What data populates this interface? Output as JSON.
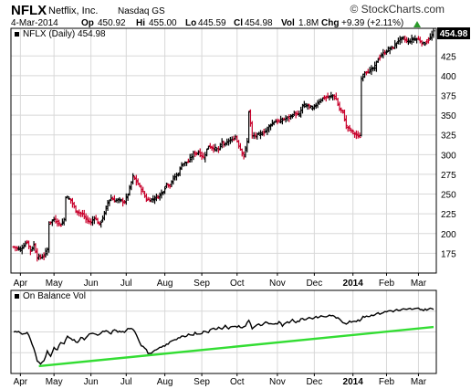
{
  "header": {
    "symbol": "NFLX",
    "company": "Netflix, Inc.",
    "exchange": "Nasdaq GS",
    "copyright": "© StockCharts.com",
    "date": "4-Mar-2014",
    "op_label": "Op",
    "op_value": "450.92",
    "hi_label": "Hi",
    "hi_value": "455.00",
    "lo_label": "Lo",
    "lo_value": "445.59",
    "cl_label": "Cl",
    "cl_value": "454.98",
    "vol_label": "Vol",
    "vol_value": "1.8M",
    "chg_label": "Chg",
    "chg_value": "+9.39 (+2.11%)"
  },
  "colors": {
    "up": "#000000",
    "down": "#c8002b",
    "obv": "#000000",
    "trend": "#33dd33",
    "grid": "#d8d8d8",
    "last_price_box": "#000000"
  },
  "chart_data": [
    {
      "type": "ohlc",
      "legend": "NFLX (Daily) 454.98",
      "last_price_label": "454.98",
      "y_ticks": [
        175,
        200,
        225,
        250,
        275,
        300,
        325,
        350,
        375,
        400,
        425
      ],
      "ylim": [
        150,
        460
      ],
      "x_tick_labels": [
        "Apr",
        "May",
        "Jun",
        "Jul",
        "Aug",
        "Sep",
        "Oct",
        "Nov",
        "Dec",
        "2014",
        "Feb",
        "Mar"
      ],
      "x_tick_bold": [
        false,
        false,
        false,
        false,
        false,
        false,
        false,
        false,
        false,
        true,
        false,
        false
      ],
      "x_tick_positions": [
        4,
        24,
        46,
        67,
        90,
        112,
        133,
        157,
        179,
        202,
        222,
        241
      ],
      "n_bars": 251,
      "anchors": [
        [
          0,
          183
        ],
        [
          4,
          180
        ],
        [
          8,
          190
        ],
        [
          10,
          178
        ],
        [
          12,
          186
        ],
        [
          14,
          170
        ],
        [
          16,
          170
        ],
        [
          18,
          172
        ],
        [
          20,
          180
        ],
        [
          21,
          213
        ],
        [
          24,
          218
        ],
        [
          28,
          211
        ],
        [
          30,
          218
        ],
        [
          31,
          247
        ],
        [
          34,
          242
        ],
        [
          37,
          229
        ],
        [
          41,
          224
        ],
        [
          43,
          218
        ],
        [
          46,
          214
        ],
        [
          48,
          221
        ],
        [
          51,
          211
        ],
        [
          54,
          225
        ],
        [
          56,
          240
        ],
        [
          58,
          245
        ],
        [
          60,
          242
        ],
        [
          63,
          242
        ],
        [
          66,
          240
        ],
        [
          68,
          250
        ],
        [
          71,
          272
        ],
        [
          74,
          263
        ],
        [
          77,
          252
        ],
        [
          79,
          243
        ],
        [
          82,
          243
        ],
        [
          86,
          247
        ],
        [
          89,
          254
        ],
        [
          91,
          263
        ],
        [
          93,
          261
        ],
        [
          95,
          270
        ],
        [
          98,
          276
        ],
        [
          100,
          288
        ],
        [
          104,
          291
        ],
        [
          107,
          301
        ],
        [
          110,
          303
        ],
        [
          113,
          296
        ],
        [
          116,
          311
        ],
        [
          119,
          308
        ],
        [
          122,
          306
        ],
        [
          124,
          316
        ],
        [
          126,
          312
        ],
        [
          128,
          318
        ],
        [
          130,
          318
        ],
        [
          132,
          323
        ],
        [
          134,
          312
        ],
        [
          137,
          298
        ],
        [
          139,
          316
        ],
        [
          140,
          355
        ],
        [
          142,
          323
        ],
        [
          146,
          325
        ],
        [
          150,
          330
        ],
        [
          152,
          336
        ],
        [
          155,
          342
        ],
        [
          158,
          342
        ],
        [
          161,
          345
        ],
        [
          164,
          347
        ],
        [
          167,
          352
        ],
        [
          170,
          350
        ],
        [
          172,
          362
        ],
        [
          175,
          362
        ],
        [
          178,
          358
        ],
        [
          181,
          366
        ],
        [
          183,
          370
        ],
        [
          185,
          372
        ],
        [
          188,
          373
        ],
        [
          190,
          375
        ],
        [
          192,
          370
        ],
        [
          194,
          357
        ],
        [
          196,
          354
        ],
        [
          198,
          336
        ],
        [
          200,
          332
        ],
        [
          202,
          328
        ],
        [
          205,
          323
        ],
        [
          206,
          323
        ],
        [
          207,
          396
        ],
        [
          209,
          405
        ],
        [
          212,
          406
        ],
        [
          215,
          411
        ],
        [
          217,
          422
        ],
        [
          219,
          426
        ],
        [
          223,
          433
        ],
        [
          226,
          436
        ],
        [
          229,
          445
        ],
        [
          232,
          447
        ],
        [
          235,
          443
        ],
        [
          238,
          447
        ],
        [
          241,
          446
        ],
        [
          244,
          440
        ],
        [
          248,
          448
        ],
        [
          250,
          455
        ]
      ]
    },
    {
      "type": "line",
      "legend": "On Balance Vol",
      "ylim": [
        0,
        100
      ],
      "series": [
        [
          0,
          62
        ],
        [
          3,
          63
        ],
        [
          6,
          58
        ],
        [
          8,
          60
        ],
        [
          10,
          50
        ],
        [
          12,
          35
        ],
        [
          14,
          15
        ],
        [
          16,
          10
        ],
        [
          18,
          14
        ],
        [
          20,
          30
        ],
        [
          22,
          22
        ],
        [
          24,
          38
        ],
        [
          26,
          32
        ],
        [
          28,
          45
        ],
        [
          30,
          42
        ],
        [
          32,
          55
        ],
        [
          34,
          50
        ],
        [
          36,
          48
        ],
        [
          38,
          45
        ],
        [
          40,
          52
        ],
        [
          42,
          50
        ],
        [
          44,
          55
        ],
        [
          46,
          60
        ],
        [
          48,
          58
        ],
        [
          50,
          56
        ],
        [
          52,
          60
        ],
        [
          54,
          64
        ],
        [
          56,
          62
        ],
        [
          58,
          60
        ],
        [
          60,
          66
        ],
        [
          62,
          62
        ],
        [
          64,
          63
        ],
        [
          66,
          60
        ],
        [
          68,
          67
        ],
        [
          70,
          69
        ],
        [
          72,
          64
        ],
        [
          74,
          52
        ],
        [
          76,
          40
        ],
        [
          78,
          36
        ],
        [
          80,
          28
        ],
        [
          82,
          26
        ],
        [
          84,
          31
        ],
        [
          86,
          34
        ],
        [
          88,
          37
        ],
        [
          90,
          40
        ],
        [
          92,
          42
        ],
        [
          94,
          48
        ],
        [
          96,
          50
        ],
        [
          98,
          52
        ],
        [
          100,
          55
        ],
        [
          102,
          53
        ],
        [
          104,
          58
        ],
        [
          106,
          56
        ],
        [
          108,
          60
        ],
        [
          110,
          58
        ],
        [
          112,
          60
        ],
        [
          114,
          64
        ],
        [
          116,
          62
        ],
        [
          118,
          68
        ],
        [
          120,
          66
        ],
        [
          122,
          70
        ],
        [
          124,
          68
        ],
        [
          126,
          72
        ],
        [
          128,
          66
        ],
        [
          130,
          72
        ],
        [
          132,
          70
        ],
        [
          134,
          72
        ],
        [
          136,
          68
        ],
        [
          138,
          72
        ],
        [
          140,
          82
        ],
        [
          142,
          68
        ],
        [
          144,
          72
        ],
        [
          146,
          74
        ],
        [
          148,
          72
        ],
        [
          150,
          78
        ],
        [
          152,
          74
        ],
        [
          154,
          76
        ],
        [
          156,
          74
        ],
        [
          158,
          78
        ],
        [
          160,
          72
        ],
        [
          162,
          78
        ],
        [
          164,
          76
        ],
        [
          166,
          82
        ],
        [
          168,
          78
        ],
        [
          170,
          80
        ],
        [
          172,
          84
        ],
        [
          174,
          82
        ],
        [
          176,
          86
        ],
        [
          178,
          84
        ],
        [
          180,
          87
        ],
        [
          182,
          86
        ],
        [
          184,
          88
        ],
        [
          186,
          86
        ],
        [
          188,
          90
        ],
        [
          190,
          88
        ],
        [
          192,
          86
        ],
        [
          194,
          82
        ],
        [
          196,
          78
        ],
        [
          198,
          76
        ],
        [
          200,
          80
        ],
        [
          202,
          78
        ],
        [
          204,
          80
        ],
        [
          206,
          80
        ],
        [
          208,
          86
        ],
        [
          210,
          88
        ],
        [
          212,
          88
        ],
        [
          214,
          90
        ],
        [
          216,
          92
        ],
        [
          218,
          92
        ],
        [
          220,
          94
        ],
        [
          222,
          95
        ],
        [
          224,
          97
        ],
        [
          226,
          96
        ],
        [
          228,
          98
        ],
        [
          230,
          97
        ],
        [
          232,
          99
        ],
        [
          234,
          98
        ],
        [
          236,
          100
        ],
        [
          238,
          99
        ],
        [
          240,
          100
        ],
        [
          242,
          99
        ],
        [
          244,
          98
        ],
        [
          246,
          99
        ],
        [
          248,
          100
        ],
        [
          250,
          99
        ]
      ],
      "trendline": [
        [
          15,
          6
        ],
        [
          250,
          70
        ]
      ],
      "x_tick_labels": [
        "Apr",
        "May",
        "Jun",
        "Jul",
        "Aug",
        "Sep",
        "Oct",
        "Nov",
        "Dec",
        "2014",
        "Feb",
        "Mar"
      ],
      "x_tick_bold": [
        false,
        false,
        false,
        false,
        false,
        false,
        false,
        false,
        false,
        true,
        false,
        false
      ]
    }
  ]
}
